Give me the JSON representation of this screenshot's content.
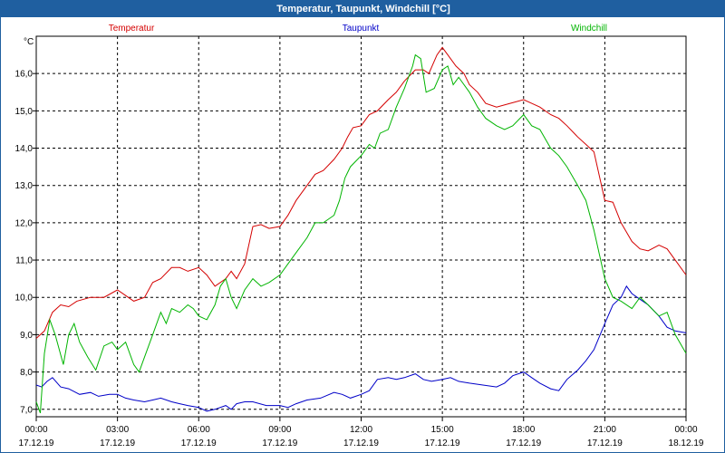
{
  "window": {
    "title": "Temperatur, Taupunkt, Windchill [°C]"
  },
  "chart_data": {
    "type": "line",
    "title": "Temperatur, Taupunkt, Windchill [°C]",
    "ylabel": "°C",
    "xlabel": "",
    "ylim": [
      6.8,
      17.0
    ],
    "xlim": [
      0,
      24
    ],
    "grid": true,
    "y_ticks": [
      {
        "value": 7.0,
        "label": "7,0"
      },
      {
        "value": 8.0,
        "label": "8,0"
      },
      {
        "value": 9.0,
        "label": "9,0"
      },
      {
        "value": 10.0,
        "label": "10,0"
      },
      {
        "value": 11.0,
        "label": "11,0"
      },
      {
        "value": 12.0,
        "label": "12,0"
      },
      {
        "value": 13.0,
        "label": "13,0"
      },
      {
        "value": 14.0,
        "label": "14,0"
      },
      {
        "value": 15.0,
        "label": "15,0"
      },
      {
        "value": 16.0,
        "label": "16,0"
      }
    ],
    "x_ticks": [
      {
        "value": 0,
        "time": "00:00",
        "date": "17.12.19"
      },
      {
        "value": 3,
        "time": "03:00",
        "date": "17.12.19"
      },
      {
        "value": 6,
        "time": "06:00",
        "date": "17.12.19"
      },
      {
        "value": 9,
        "time": "09:00",
        "date": "17.12.19"
      },
      {
        "value": 12,
        "time": "12:00",
        "date": "17.12.19"
      },
      {
        "value": 15,
        "time": "15:00",
        "date": "17.12.19"
      },
      {
        "value": 18,
        "time": "18:00",
        "date": "17.12.19"
      },
      {
        "value": 21,
        "time": "21:00",
        "date": "17.12.19"
      },
      {
        "value": 24,
        "time": "00:00",
        "date": "18.12.19"
      }
    ],
    "series": [
      {
        "name": "Temperatur",
        "color": "#d40000",
        "points": [
          [
            0,
            8.9
          ],
          [
            0.3,
            9.1
          ],
          [
            0.6,
            9.6
          ],
          [
            0.9,
            9.8
          ],
          [
            1.2,
            9.75
          ],
          [
            1.5,
            9.9
          ],
          [
            2,
            10.0
          ],
          [
            2.5,
            10.0
          ],
          [
            3,
            10.2
          ],
          [
            3.3,
            10.05
          ],
          [
            3.6,
            9.9
          ],
          [
            4,
            10.0
          ],
          [
            4.3,
            10.4
          ],
          [
            4.6,
            10.5
          ],
          [
            5,
            10.8
          ],
          [
            5.3,
            10.8
          ],
          [
            5.6,
            10.7
          ],
          [
            6,
            10.8
          ],
          [
            6.3,
            10.6
          ],
          [
            6.6,
            10.3
          ],
          [
            7,
            10.5
          ],
          [
            7.2,
            10.7
          ],
          [
            7.4,
            10.5
          ],
          [
            7.7,
            10.9
          ],
          [
            8,
            11.9
          ],
          [
            8.3,
            11.95
          ],
          [
            8.6,
            11.85
          ],
          [
            9,
            11.9
          ],
          [
            9.3,
            12.2
          ],
          [
            9.6,
            12.6
          ],
          [
            10,
            13.0
          ],
          [
            10.3,
            13.3
          ],
          [
            10.6,
            13.4
          ],
          [
            11,
            13.7
          ],
          [
            11.3,
            14.0
          ],
          [
            11.5,
            14.3
          ],
          [
            11.7,
            14.55
          ],
          [
            12,
            14.6
          ],
          [
            12.3,
            14.9
          ],
          [
            12.6,
            15.0
          ],
          [
            13,
            15.3
          ],
          [
            13.3,
            15.5
          ],
          [
            13.6,
            15.8
          ],
          [
            14,
            16.1
          ],
          [
            14.3,
            16.1
          ],
          [
            14.5,
            16.0
          ],
          [
            14.8,
            16.5
          ],
          [
            15,
            16.7
          ],
          [
            15.2,
            16.5
          ],
          [
            15.5,
            16.2
          ],
          [
            15.8,
            16.0
          ],
          [
            16,
            15.7
          ],
          [
            16.3,
            15.5
          ],
          [
            16.6,
            15.2
          ],
          [
            17,
            15.1
          ],
          [
            17.5,
            15.2
          ],
          [
            18,
            15.3
          ],
          [
            18.3,
            15.2
          ],
          [
            18.6,
            15.1
          ],
          [
            19,
            14.9
          ],
          [
            19.3,
            14.8
          ],
          [
            19.6,
            14.6
          ],
          [
            20,
            14.3
          ],
          [
            20.3,
            14.1
          ],
          [
            20.6,
            13.9
          ],
          [
            21,
            12.6
          ],
          [
            21.3,
            12.55
          ],
          [
            21.6,
            12.0
          ],
          [
            22,
            11.5
          ],
          [
            22.3,
            11.3
          ],
          [
            22.6,
            11.25
          ],
          [
            23,
            11.4
          ],
          [
            23.3,
            11.3
          ],
          [
            23.6,
            11.0
          ],
          [
            24,
            10.6
          ]
        ]
      },
      {
        "name": "Taupunkt",
        "color": "#0000c8",
        "points": [
          [
            0,
            7.65
          ],
          [
            0.2,
            7.6
          ],
          [
            0.4,
            7.75
          ],
          [
            0.6,
            7.85
          ],
          [
            0.9,
            7.6
          ],
          [
            1.2,
            7.55
          ],
          [
            1.6,
            7.4
          ],
          [
            2,
            7.45
          ],
          [
            2.3,
            7.35
          ],
          [
            2.7,
            7.4
          ],
          [
            3,
            7.4
          ],
          [
            3.3,
            7.3
          ],
          [
            3.6,
            7.25
          ],
          [
            4,
            7.2
          ],
          [
            4.3,
            7.25
          ],
          [
            4.6,
            7.3
          ],
          [
            5,
            7.2
          ],
          [
            5.3,
            7.15
          ],
          [
            5.6,
            7.1
          ],
          [
            6,
            7.05
          ],
          [
            6.3,
            6.95
          ],
          [
            6.6,
            7.0
          ],
          [
            7,
            7.1
          ],
          [
            7.2,
            7.0
          ],
          [
            7.4,
            7.15
          ],
          [
            7.7,
            7.2
          ],
          [
            8,
            7.2
          ],
          [
            8.5,
            7.1
          ],
          [
            9,
            7.1
          ],
          [
            9.3,
            7.05
          ],
          [
            9.6,
            7.15
          ],
          [
            10,
            7.25
          ],
          [
            10.5,
            7.3
          ],
          [
            11,
            7.45
          ],
          [
            11.3,
            7.4
          ],
          [
            11.6,
            7.3
          ],
          [
            12,
            7.4
          ],
          [
            12.3,
            7.5
          ],
          [
            12.6,
            7.8
          ],
          [
            13,
            7.85
          ],
          [
            13.3,
            7.8
          ],
          [
            13.6,
            7.85
          ],
          [
            14,
            7.95
          ],
          [
            14.3,
            7.8
          ],
          [
            14.6,
            7.75
          ],
          [
            15,
            7.8
          ],
          [
            15.3,
            7.85
          ],
          [
            15.6,
            7.75
          ],
          [
            16,
            7.7
          ],
          [
            16.5,
            7.65
          ],
          [
            17,
            7.6
          ],
          [
            17.3,
            7.7
          ],
          [
            17.6,
            7.9
          ],
          [
            18,
            8.0
          ],
          [
            18.3,
            7.85
          ],
          [
            18.6,
            7.7
          ],
          [
            19,
            7.55
          ],
          [
            19.3,
            7.5
          ],
          [
            19.6,
            7.8
          ],
          [
            20,
            8.05
          ],
          [
            20.3,
            8.3
          ],
          [
            20.6,
            8.6
          ],
          [
            21,
            9.3
          ],
          [
            21.3,
            9.8
          ],
          [
            21.6,
            10.0
          ],
          [
            21.8,
            10.3
          ],
          [
            22,
            10.1
          ],
          [
            22.3,
            9.95
          ],
          [
            22.6,
            9.8
          ],
          [
            23,
            9.5
          ],
          [
            23.3,
            9.2
          ],
          [
            23.6,
            9.1
          ],
          [
            24,
            9.05
          ]
        ]
      },
      {
        "name": "Windchill",
        "color": "#00b400",
        "points": [
          [
            0,
            7.2
          ],
          [
            0.15,
            6.9
          ],
          [
            0.3,
            8.5
          ],
          [
            0.5,
            9.4
          ],
          [
            0.7,
            9.0
          ],
          [
            1,
            8.2
          ],
          [
            1.2,
            9.0
          ],
          [
            1.4,
            9.3
          ],
          [
            1.6,
            8.8
          ],
          [
            1.9,
            8.4
          ],
          [
            2.2,
            8.05
          ],
          [
            2.5,
            8.7
          ],
          [
            2.8,
            8.8
          ],
          [
            3,
            8.6
          ],
          [
            3.3,
            8.8
          ],
          [
            3.6,
            8.2
          ],
          [
            3.8,
            8.0
          ],
          [
            4,
            8.4
          ],
          [
            4.3,
            9.0
          ],
          [
            4.6,
            9.6
          ],
          [
            4.8,
            9.3
          ],
          [
            5,
            9.7
          ],
          [
            5.3,
            9.6
          ],
          [
            5.6,
            9.8
          ],
          [
            5.8,
            9.7
          ],
          [
            6,
            9.5
          ],
          [
            6.3,
            9.4
          ],
          [
            6.6,
            9.8
          ],
          [
            6.8,
            10.3
          ],
          [
            7,
            10.5
          ],
          [
            7.2,
            10.0
          ],
          [
            7.4,
            9.7
          ],
          [
            7.7,
            10.2
          ],
          [
            8,
            10.5
          ],
          [
            8.3,
            10.3
          ],
          [
            8.6,
            10.4
          ],
          [
            9,
            10.6
          ],
          [
            9.3,
            10.9
          ],
          [
            9.6,
            11.2
          ],
          [
            10,
            11.6
          ],
          [
            10.3,
            12.0
          ],
          [
            10.6,
            12.0
          ],
          [
            11,
            12.2
          ],
          [
            11.2,
            12.6
          ],
          [
            11.4,
            13.2
          ],
          [
            11.6,
            13.5
          ],
          [
            12,
            13.8
          ],
          [
            12.3,
            14.1
          ],
          [
            12.5,
            14.0
          ],
          [
            12.7,
            14.4
          ],
          [
            13,
            14.5
          ],
          [
            13.3,
            15.1
          ],
          [
            13.6,
            15.6
          ],
          [
            13.9,
            16.2
          ],
          [
            14,
            16.5
          ],
          [
            14.2,
            16.4
          ],
          [
            14.4,
            15.5
          ],
          [
            14.7,
            15.6
          ],
          [
            15,
            16.1
          ],
          [
            15.2,
            16.2
          ],
          [
            15.4,
            15.7
          ],
          [
            15.6,
            15.9
          ],
          [
            16,
            15.5
          ],
          [
            16.3,
            15.1
          ],
          [
            16.6,
            14.8
          ],
          [
            17,
            14.6
          ],
          [
            17.3,
            14.5
          ],
          [
            17.6,
            14.6
          ],
          [
            18,
            14.9
          ],
          [
            18.3,
            14.6
          ],
          [
            18.6,
            14.5
          ],
          [
            19,
            14.0
          ],
          [
            19.3,
            13.8
          ],
          [
            19.6,
            13.5
          ],
          [
            20,
            13.0
          ],
          [
            20.3,
            12.6
          ],
          [
            20.6,
            11.8
          ],
          [
            21,
            10.5
          ],
          [
            21.3,
            10.0
          ],
          [
            21.6,
            9.9
          ],
          [
            22,
            9.7
          ],
          [
            22.3,
            10.0
          ],
          [
            22.6,
            9.8
          ],
          [
            23,
            9.5
          ],
          [
            23.3,
            9.6
          ],
          [
            23.6,
            9.0
          ],
          [
            24,
            8.5
          ]
        ]
      }
    ]
  }
}
